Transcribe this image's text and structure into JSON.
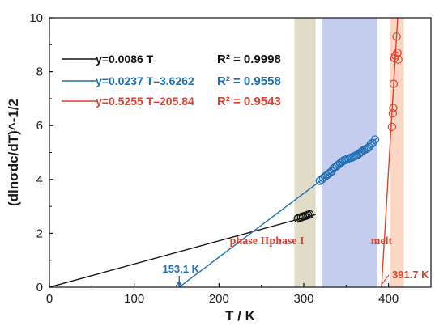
{
  "chart_data": {
    "type": "scatter",
    "xlabel": "T / K",
    "ylabel": "(dlnσdc/dT)^-1/2",
    "xlim": [
      0,
      450
    ],
    "ylim": [
      0,
      10
    ],
    "x_ticks": [
      0,
      100,
      200,
      300,
      400
    ],
    "y_ticks": [
      0,
      2,
      4,
      6,
      8,
      10
    ],
    "regions": [
      {
        "label": "phase II",
        "x_range": [
          289,
          314
        ],
        "color": "#e0dcc8"
      },
      {
        "label": "phase I",
        "x_range": [
          322,
          387
        ],
        "color": "#c5cdef"
      },
      {
        "label": "melt",
        "x_range": [
          402,
          418
        ],
        "color": "#fbd8c3"
      }
    ],
    "fits": [
      {
        "legend": "y=0.0086 T",
        "r2": "R² = 0.9998",
        "slope": 0.0086,
        "intercept": 0,
        "x_range": [
          0,
          314
        ],
        "color": "#111111"
      },
      {
        "legend": "y=0.0237 T–3.6262",
        "r2": "R² = 0.9558",
        "slope": 0.0237,
        "intercept": -3.6262,
        "x_range": [
          153.1,
          388
        ],
        "color": "#1f6fb5"
      },
      {
        "legend": "y=0.5255 T–205.84",
        "r2": "R² = 0.9543",
        "slope": 0.5255,
        "intercept": -205.84,
        "x_range": [
          391.7,
          410.9
        ],
        "color": "#e0402e"
      }
    ],
    "series": [
      {
        "phase": "phase II",
        "color": "#111111",
        "points": [
          [
            293,
            2.55
          ],
          [
            295,
            2.58
          ],
          [
            297,
            2.6
          ],
          [
            299,
            2.62
          ],
          [
            301,
            2.64
          ],
          [
            303,
            2.66
          ],
          [
            305,
            2.68
          ],
          [
            307,
            2.7
          ]
        ]
      },
      {
        "phase": "phase I",
        "color": "#1f6fb5",
        "points": [
          [
            319,
            3.95
          ],
          [
            321,
            4.0
          ],
          [
            323,
            4.05
          ],
          [
            325,
            4.1
          ],
          [
            327,
            4.15
          ],
          [
            329,
            4.2
          ],
          [
            331,
            4.25
          ],
          [
            333,
            4.3
          ],
          [
            335,
            4.4
          ],
          [
            337,
            4.45
          ],
          [
            339,
            4.5
          ],
          [
            341,
            4.55
          ],
          [
            343,
            4.6
          ],
          [
            345,
            4.65
          ],
          [
            347,
            4.7
          ],
          [
            349,
            4.72
          ],
          [
            351,
            4.75
          ],
          [
            353,
            4.78
          ],
          [
            355,
            4.8
          ],
          [
            357,
            4.82
          ],
          [
            359,
            4.85
          ],
          [
            361,
            4.88
          ],
          [
            363,
            4.9
          ],
          [
            365,
            4.95
          ],
          [
            367,
            5.0
          ],
          [
            369,
            5.05
          ],
          [
            371,
            5.1
          ],
          [
            373,
            5.12
          ],
          [
            375,
            5.15
          ],
          [
            377,
            5.2
          ],
          [
            379,
            5.3
          ],
          [
            381,
            5.35
          ],
          [
            384,
            5.48
          ]
        ]
      },
      {
        "phase": "melt",
        "color": "#e0402e",
        "points": [
          [
            404,
            5.95
          ],
          [
            405,
            6.45
          ],
          [
            405.5,
            6.65
          ],
          [
            406,
            7.55
          ],
          [
            407,
            8.5
          ],
          [
            408,
            8.6
          ],
          [
            409.5,
            9.3
          ],
          [
            410.5,
            8.7
          ],
          [
            411.5,
            8.45
          ]
        ]
      }
    ],
    "annotations": [
      {
        "text": "153.1 K",
        "x": 153.1,
        "color": "#1f6fb5"
      },
      {
        "text": "391.7 K",
        "x": 391.7,
        "color": "#e0402e"
      }
    ]
  }
}
